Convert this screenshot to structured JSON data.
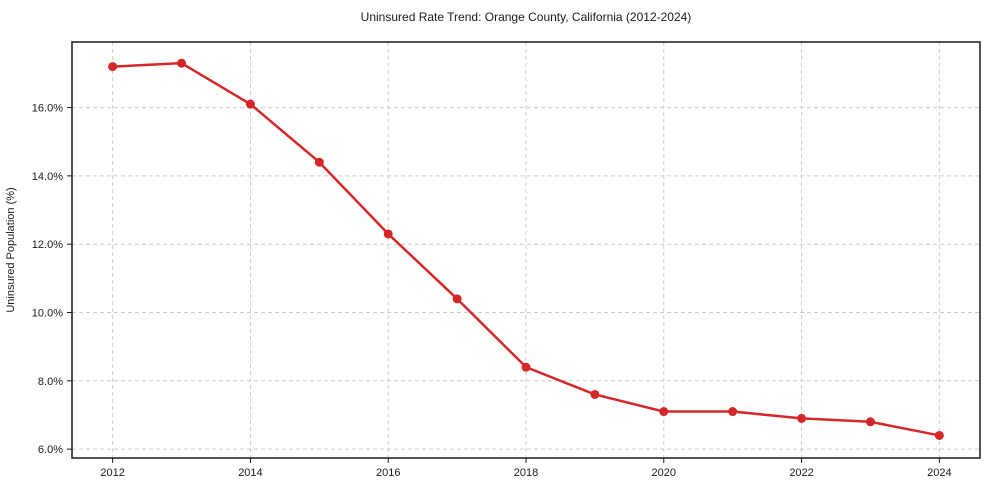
{
  "chart_data": {
    "type": "line",
    "title": "Uninsured Rate Trend: Orange County, California (2012-2024)",
    "xlabel": "",
    "ylabel": "Uninsured Population (%)",
    "x": [
      2012,
      2013,
      2014,
      2015,
      2016,
      2017,
      2018,
      2019,
      2020,
      2021,
      2022,
      2023,
      2024
    ],
    "series": [
      {
        "name": "Uninsured Rate",
        "values": [
          17.2,
          17.3,
          16.1,
          14.4,
          12.3,
          10.4,
          8.4,
          7.6,
          7.1,
          7.1,
          6.9,
          6.8,
          6.4
        ],
        "color": "#d62728"
      }
    ],
    "xlim": [
      2011.41,
      2024.59
    ],
    "ylim": [
      5.74,
      17.92
    ],
    "xticks": {
      "values": [
        2012,
        2014,
        2016,
        2018,
        2020,
        2022,
        2024
      ],
      "labels": [
        "2012",
        "2014",
        "2016",
        "2018",
        "2020",
        "2022",
        "2024"
      ]
    },
    "yticks": {
      "values": [
        6,
        8,
        10,
        12,
        14,
        16
      ],
      "labels": [
        "6.0%",
        "8.0%",
        "10.0%",
        "12.0%",
        "14.0%",
        "16.0%"
      ]
    },
    "grid": "both, dashed",
    "legend": "none",
    "marker": "circle",
    "colors": {
      "line": "#d62728",
      "grid": "#cccccc",
      "spine": "#1a1a1a",
      "background": "#ffffff",
      "text": "#1a1a1a"
    }
  }
}
